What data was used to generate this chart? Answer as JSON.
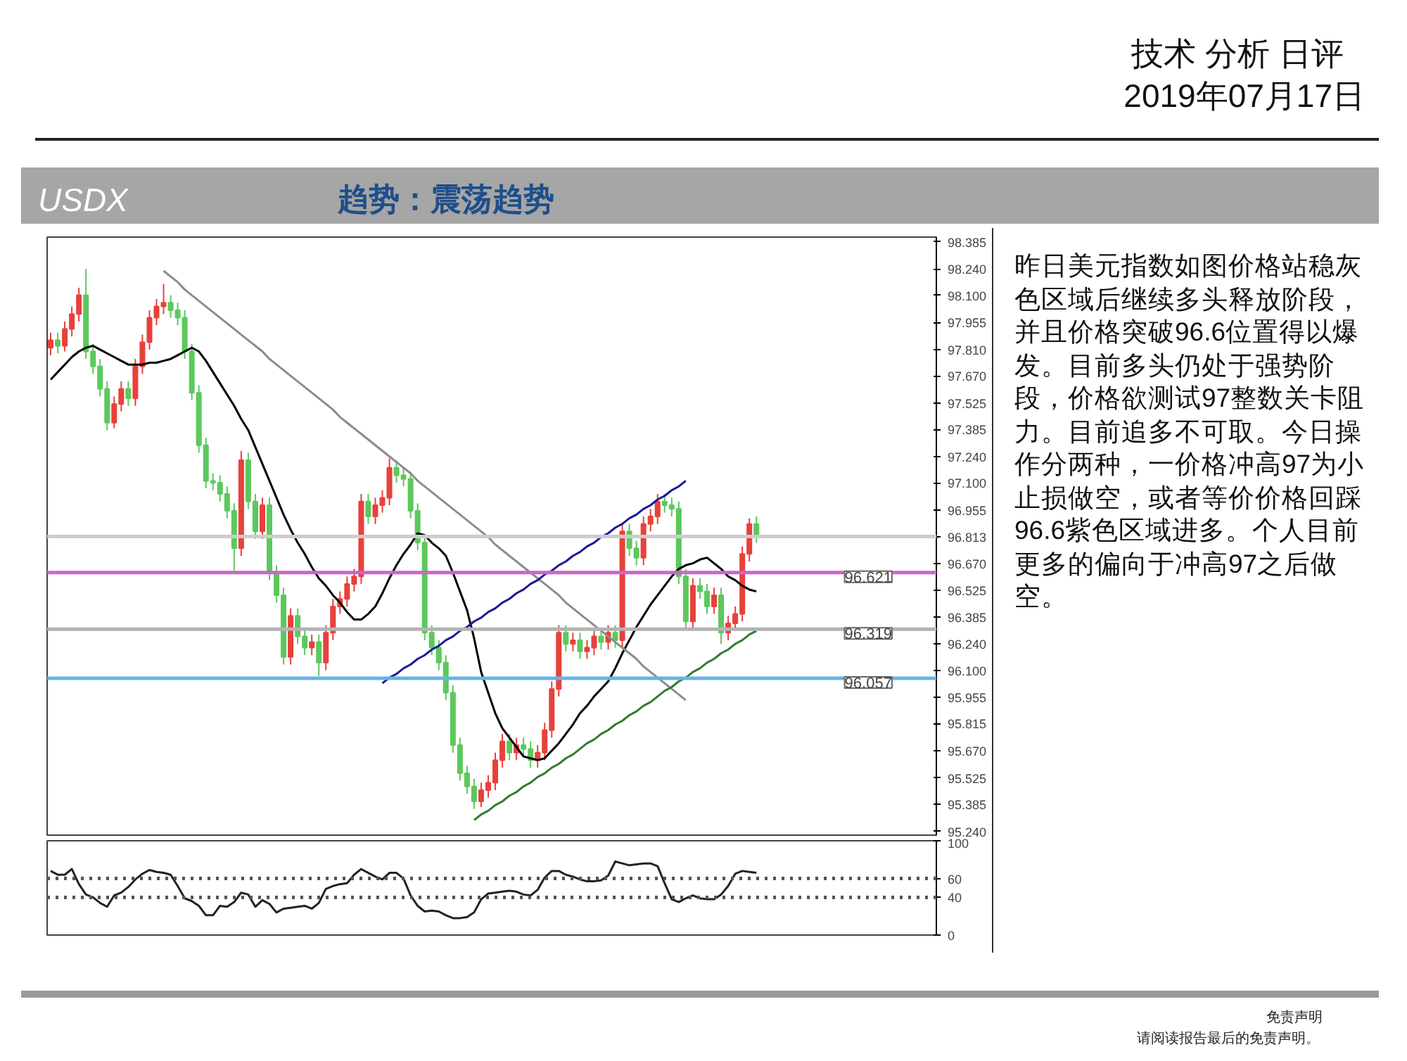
{
  "chart_data": [
    {
      "type": "candlestick",
      "title": "USDX",
      "subtitle": "趋势：震荡趋势",
      "annotations": [
        "技术 分析 日评",
        "2019年07月17日",
        "昨日美元指数如图价格站稳灰色区域后继续多头释放阶段，并且价格突破96.6位置得以爆发。目前多头仍处于强势阶段，价格欲测试97整数关卡阻力。目前追多不可取。今日操作分两种，一价格冲高97为小止损做空，或者等价价格回踩96.6紫色区域进多。个人目前更多的偏向于冲高97之后做空。",
        "免责声明",
        "请阅读报告最后的免责声明。"
      ],
      "categories": [
        null,
        null,
        null,
        null,
        null,
        null,
        null,
        null,
        null,
        null,
        null,
        null,
        null,
        null,
        null,
        null,
        null,
        null,
        null,
        null,
        null,
        null,
        null,
        null,
        null,
        null,
        null,
        null,
        null,
        null,
        null,
        null,
        null,
        null,
        null,
        null,
        null,
        null,
        null,
        null,
        null,
        null,
        null,
        null,
        null,
        null,
        null,
        null,
        null,
        null,
        null,
        null,
        null,
        null,
        null,
        null,
        null,
        null,
        null,
        null,
        null,
        null,
        null,
        null,
        null,
        null,
        null,
        null,
        null,
        null,
        null,
        null,
        null,
        null,
        null,
        null,
        null,
        null,
        null,
        null,
        null,
        null,
        null,
        null,
        null,
        null,
        null,
        null,
        null,
        null,
        null,
        null,
        null,
        null,
        null,
        null,
        null,
        null,
        null,
        null,
        null
      ],
      "ohlc": [
        [
          97.82,
          97.9,
          97.78,
          97.86
        ],
        [
          97.86,
          97.9,
          97.79,
          97.83
        ],
        [
          97.83,
          97.96,
          97.8,
          97.92
        ],
        [
          97.92,
          98.04,
          97.88,
          98.0
        ],
        [
          98.0,
          98.14,
          97.96,
          98.1
        ],
        [
          98.1,
          98.24,
          97.76,
          97.8
        ],
        [
          97.8,
          97.84,
          97.68,
          97.72
        ],
        [
          97.72,
          97.76,
          97.56,
          97.6
        ],
        [
          97.6,
          97.64,
          97.38,
          97.42
        ],
        [
          97.42,
          97.56,
          97.39,
          97.52
        ],
        [
          97.52,
          97.64,
          97.48,
          97.6
        ],
        [
          97.6,
          97.64,
          97.51,
          97.55
        ],
        [
          97.55,
          97.76,
          97.51,
          97.72
        ],
        [
          97.72,
          97.89,
          97.68,
          97.85
        ],
        [
          97.85,
          98.02,
          97.81,
          97.98
        ],
        [
          97.98,
          98.08,
          97.94,
          98.04
        ],
        [
          98.04,
          98.16,
          98.0,
          98.06
        ],
        [
          98.06,
          98.1,
          97.98,
          98.02
        ],
        [
          98.02,
          98.06,
          97.94,
          97.98
        ],
        [
          97.98,
          98.02,
          97.76,
          97.8
        ],
        [
          97.8,
          97.84,
          97.54,
          97.58
        ],
        [
          97.58,
          97.62,
          97.26,
          97.3
        ],
        [
          97.3,
          97.34,
          97.07,
          97.11
        ],
        [
          97.11,
          97.15,
          97.06,
          97.1
        ],
        [
          97.1,
          97.14,
          97.0,
          97.04
        ],
        [
          97.04,
          97.08,
          96.91,
          96.95
        ],
        [
          96.95,
          96.99,
          96.63,
          96.75
        ],
        [
          96.75,
          97.27,
          96.71,
          97.22
        ],
        [
          97.22,
          97.26,
          96.96,
          97.0
        ],
        [
          97.0,
          97.04,
          96.8,
          96.84
        ],
        [
          96.84,
          97.02,
          96.8,
          96.98
        ],
        [
          96.98,
          97.02,
          96.58,
          96.62
        ],
        [
          96.62,
          96.66,
          96.46,
          96.5
        ],
        [
          96.5,
          96.54,
          96.13,
          96.17
        ],
        [
          96.17,
          96.43,
          96.13,
          96.39
        ],
        [
          96.39,
          96.43,
          96.24,
          96.28
        ],
        [
          96.28,
          96.32,
          96.18,
          96.22
        ],
        [
          96.22,
          96.29,
          96.18,
          96.25
        ],
        [
          96.25,
          96.29,
          96.07,
          96.14
        ],
        [
          96.14,
          96.34,
          96.1,
          96.3
        ],
        [
          96.3,
          96.48,
          96.26,
          96.44
        ],
        [
          96.44,
          96.52,
          96.4,
          96.48
        ],
        [
          96.48,
          96.6,
          96.44,
          96.56
        ],
        [
          96.56,
          96.64,
          96.52,
          96.6
        ],
        [
          96.6,
          97.04,
          96.56,
          97.0
        ],
        [
          97.0,
          97.04,
          96.88,
          96.92
        ],
        [
          96.92,
          97.02,
          96.88,
          96.98
        ],
        [
          96.98,
          97.06,
          96.94,
          97.02
        ],
        [
          97.02,
          97.23,
          96.98,
          97.18
        ],
        [
          97.18,
          97.22,
          97.1,
          97.14
        ],
        [
          97.14,
          97.18,
          97.08,
          97.12
        ],
        [
          97.12,
          97.16,
          96.91,
          96.95
        ],
        [
          96.95,
          96.99,
          96.74,
          96.78
        ],
        [
          96.78,
          96.82,
          96.26,
          96.3
        ],
        [
          96.3,
          96.34,
          96.18,
          96.22
        ],
        [
          96.22,
          96.26,
          96.1,
          96.14
        ],
        [
          96.14,
          96.18,
          95.94,
          95.98
        ],
        [
          95.98,
          96.02,
          95.66,
          95.7
        ],
        [
          95.7,
          95.74,
          95.51,
          95.55
        ],
        [
          95.55,
          95.59,
          95.44,
          95.48
        ],
        [
          95.48,
          95.52,
          95.36,
          95.4
        ],
        [
          95.4,
          95.5,
          95.37,
          95.46
        ],
        [
          95.46,
          95.54,
          95.42,
          95.5
        ],
        [
          95.5,
          95.66,
          95.46,
          95.62
        ],
        [
          95.62,
          95.76,
          95.58,
          95.72
        ],
        [
          95.72,
          95.76,
          95.62,
          95.66
        ],
        [
          95.66,
          95.74,
          95.62,
          95.7
        ],
        [
          95.7,
          95.74,
          95.64,
          95.68
        ],
        [
          95.68,
          95.72,
          95.58,
          95.62
        ],
        [
          95.62,
          95.7,
          95.58,
          95.66
        ],
        [
          95.66,
          95.82,
          95.62,
          95.78
        ],
        [
          95.78,
          96.04,
          95.74,
          96.0
        ],
        [
          96.0,
          96.34,
          95.96,
          96.3
        ],
        [
          96.3,
          96.34,
          96.2,
          96.24
        ],
        [
          96.24,
          96.3,
          96.2,
          96.26
        ],
        [
          96.26,
          96.3,
          96.16,
          96.2
        ],
        [
          96.2,
          96.26,
          96.16,
          96.22
        ],
        [
          96.22,
          96.32,
          96.18,
          96.28
        ],
        [
          96.28,
          96.32,
          96.21,
          96.25
        ],
        [
          96.25,
          96.34,
          96.21,
          96.3
        ],
        [
          96.3,
          96.34,
          96.22,
          96.26
        ],
        [
          96.26,
          96.88,
          96.22,
          96.84
        ],
        [
          96.84,
          96.88,
          96.71,
          96.75
        ],
        [
          96.75,
          96.79,
          96.66,
          96.7
        ],
        [
          96.7,
          96.92,
          96.66,
          96.88
        ],
        [
          96.88,
          96.96,
          96.84,
          96.92
        ],
        [
          96.92,
          97.04,
          96.88,
          97.0
        ],
        [
          97.0,
          97.04,
          96.94,
          96.98
        ],
        [
          96.98,
          97.02,
          96.92,
          96.96
        ],
        [
          96.96,
          97.0,
          96.56,
          96.6
        ],
        [
          96.6,
          96.64,
          96.32,
          96.36
        ],
        [
          96.36,
          96.59,
          96.32,
          96.55
        ],
        [
          96.55,
          96.59,
          96.48,
          96.52
        ],
        [
          96.52,
          96.56,
          96.4,
          96.44
        ],
        [
          96.44,
          96.54,
          96.4,
          96.5
        ],
        [
          96.5,
          96.54,
          96.24,
          96.3
        ],
        [
          96.3,
          96.39,
          96.26,
          96.35
        ],
        [
          96.35,
          96.44,
          96.31,
          96.4
        ],
        [
          96.4,
          96.76,
          96.36,
          96.72
        ],
        [
          96.72,
          96.91,
          96.68,
          96.88
        ],
        [
          96.88,
          96.92,
          96.78,
          96.813
        ]
      ],
      "series": [
        {
          "type": "line",
          "color": "#000000",
          "values": [
            97.65,
            97.69,
            97.73,
            97.77,
            97.8,
            97.82,
            97.83,
            97.81,
            97.79,
            97.77,
            97.75,
            97.73,
            97.73,
            97.73,
            97.74,
            97.74,
            97.75,
            97.76,
            97.78,
            97.8,
            97.82,
            97.8,
            97.75,
            97.69,
            97.63,
            97.57,
            97.51,
            97.44,
            97.38,
            97.29,
            97.2,
            97.11,
            97.02,
            96.93,
            96.85,
            96.78,
            96.72,
            96.65,
            96.59,
            96.55,
            96.5,
            96.46,
            96.41,
            96.37,
            96.37,
            96.4,
            96.44,
            96.51,
            96.59,
            96.66,
            96.72,
            96.77,
            96.83,
            96.82,
            96.78,
            96.75,
            96.71,
            96.62,
            96.52,
            96.42,
            96.27,
            96.09,
            95.98,
            95.87,
            95.79,
            95.74,
            95.69,
            95.64,
            95.63,
            95.62,
            95.63,
            95.67,
            95.71,
            95.76,
            95.81,
            95.87,
            95.91,
            95.96,
            96.0,
            96.04,
            96.11,
            96.19,
            96.26,
            96.33,
            96.39,
            96.45,
            96.5,
            96.55,
            96.6,
            96.64,
            96.66,
            96.67,
            96.69,
            96.7,
            96.67,
            96.64,
            96.6,
            96.58,
            96.55,
            96.53,
            96.52
          ]
        },
        {
          "type": "line",
          "color": "#8c8c8c",
          "values": [
            null,
            null,
            null,
            null,
            null,
            null,
            null,
            null,
            null,
            null,
            null,
            null,
            null,
            null,
            null,
            null,
            98.23,
            98.2,
            98.17,
            98.13,
            98.1,
            98.07,
            98.04,
            98.01,
            97.98,
            97.95,
            97.92,
            97.89,
            97.86,
            97.83,
            97.8,
            97.76,
            97.73,
            97.7,
            97.67,
            97.64,
            97.61,
            97.58,
            97.55,
            97.52,
            97.49,
            97.45,
            97.42,
            97.39,
            97.36,
            97.33,
            97.3,
            97.27,
            97.24,
            97.21,
            97.18,
            97.15,
            97.11,
            97.08,
            97.05,
            97.02,
            96.99,
            96.96,
            96.93,
            96.9,
            96.87,
            96.84,
            96.81,
            96.77,
            96.74,
            96.71,
            96.68,
            96.65,
            96.62,
            96.59,
            96.56,
            96.53,
            96.5,
            96.46,
            96.43,
            96.4,
            96.37,
            96.34,
            96.31,
            96.28,
            96.25,
            96.22,
            96.19,
            96.16,
            96.12,
            96.09,
            96.06,
            96.03,
            96.0,
            95.97,
            95.94,
            null,
            null,
            null,
            null,
            null,
            null,
            null,
            null,
            null,
            null
          ]
        },
        {
          "type": "line",
          "color": "#1a1a99",
          "values": [
            null,
            null,
            null,
            null,
            null,
            null,
            null,
            null,
            null,
            null,
            null,
            null,
            null,
            null,
            null,
            null,
            null,
            null,
            null,
            null,
            null,
            null,
            null,
            null,
            null,
            null,
            null,
            null,
            null,
            null,
            null,
            null,
            null,
            null,
            null,
            null,
            null,
            null,
            null,
            null,
            null,
            null,
            null,
            null,
            null,
            null,
            null,
            96.03,
            96.06,
            96.08,
            96.11,
            96.13,
            96.16,
            96.18,
            96.21,
            96.23,
            96.26,
            96.28,
            96.31,
            96.33,
            96.36,
            96.38,
            96.41,
            96.43,
            96.46,
            96.48,
            96.51,
            96.53,
            96.56,
            96.58,
            96.61,
            96.63,
            96.66,
            96.68,
            96.71,
            96.73,
            96.76,
            96.78,
            96.81,
            96.83,
            96.86,
            96.88,
            96.91,
            96.93,
            96.96,
            96.98,
            97.01,
            97.03,
            97.06,
            97.08,
            97.11,
            null,
            null,
            null,
            null,
            null,
            null,
            null,
            null,
            null,
            null
          ]
        },
        {
          "type": "line",
          "color": "#2e7d32",
          "values": [
            null,
            null,
            null,
            null,
            null,
            null,
            null,
            null,
            null,
            null,
            null,
            null,
            null,
            null,
            null,
            null,
            null,
            null,
            null,
            null,
            null,
            null,
            null,
            null,
            null,
            null,
            null,
            null,
            null,
            null,
            null,
            null,
            null,
            null,
            null,
            null,
            null,
            null,
            null,
            null,
            null,
            null,
            null,
            null,
            null,
            null,
            null,
            null,
            null,
            null,
            null,
            null,
            null,
            null,
            null,
            null,
            null,
            null,
            null,
            null,
            95.3,
            95.33,
            95.35,
            95.38,
            95.4,
            95.43,
            95.45,
            95.48,
            95.5,
            95.53,
            95.55,
            95.58,
            95.6,
            95.63,
            95.65,
            95.68,
            95.71,
            95.73,
            95.76,
            95.78,
            95.81,
            95.83,
            95.86,
            95.88,
            95.91,
            95.93,
            95.96,
            95.99,
            96.01,
            96.04,
            96.06,
            96.09,
            96.11,
            96.14,
            96.16,
            96.19,
            96.21,
            96.24,
            96.26,
            96.29,
            96.31
          ]
        }
      ],
      "ref_lines": [
        {
          "axis": "y",
          "value": 96.813,
          "label": null,
          "color": "#cccccc"
        },
        {
          "axis": "y",
          "value": 96.621,
          "label": "96.621",
          "color": "#cc66cc"
        },
        {
          "axis": "y",
          "value": 96.319,
          "label": "96.319",
          "color": "#b3b3b3"
        },
        {
          "axis": "y",
          "value": 96.057,
          "label": "96.057",
          "color": "#66b3e6"
        }
      ],
      "ylim": [
        95.22,
        98.41
      ],
      "yticks": [
        98.385,
        {
          "value": 98.24,
          "label": "98.240"
        },
        {
          "value": 98.1,
          "label": "98.100"
        },
        97.955,
        {
          "value": 97.81,
          "label": "97.810"
        },
        {
          "value": 97.67,
          "label": "97.670"
        },
        97.525,
        97.385,
        {
          "value": 97.24,
          "label": "97.240"
        },
        {
          "value": 97.1,
          "label": "97.100"
        },
        96.955,
        96.813,
        {
          "value": 96.67,
          "label": "96.670"
        },
        96.525,
        96.385,
        {
          "value": 96.24,
          "label": "96.240"
        },
        {
          "value": 96.1,
          "label": "96.100"
        },
        95.955,
        95.815,
        {
          "value": 95.67,
          "label": "95.670"
        },
        95.525,
        95.385,
        {
          "value": 95.24,
          "label": "95.240"
        }
      ],
      "tick_labels": "y",
      "grid": false
    },
    {
      "type": "line",
      "color": "#222222",
      "categories": [
        null,
        null,
        null,
        null,
        null,
        null,
        null,
        null,
        null,
        null,
        null,
        null,
        null,
        null,
        null,
        null,
        null,
        null,
        null,
        null,
        null,
        null,
        null,
        null,
        null,
        null,
        null,
        null,
        null,
        null,
        null,
        null,
        null,
        null,
        null,
        null,
        null,
        null,
        null,
        null,
        null,
        null,
        null,
        null,
        null,
        null,
        null,
        null,
        null,
        null,
        null,
        null,
        null,
        null,
        null,
        null,
        null,
        null,
        null,
        null,
        null,
        null,
        null,
        null,
        null,
        null,
        null,
        null,
        null,
        null,
        null,
        null,
        null,
        null,
        null,
        null,
        null,
        null,
        null,
        null,
        null,
        null,
        null,
        null,
        null,
        null,
        null,
        null,
        null,
        null,
        null,
        null,
        null,
        null,
        null,
        null,
        null,
        null,
        null,
        null,
        null
      ],
      "values": [
        68,
        64,
        64,
        70,
        54,
        43,
        40,
        34,
        30,
        42,
        45,
        51,
        59,
        65,
        69,
        67,
        66,
        64,
        52,
        39,
        36,
        31,
        21,
        21,
        31,
        30,
        35,
        45,
        43,
        30,
        37,
        33,
        24,
        28,
        29,
        30,
        31,
        28,
        34,
        49,
        52,
        54,
        55,
        64,
        70,
        66,
        62,
        59,
        66,
        66,
        60,
        42,
        31,
        25,
        26,
        25,
        21,
        18,
        18,
        19,
        24,
        38,
        44,
        45,
        46,
        47,
        46,
        43,
        42,
        48,
        61,
        68,
        68,
        64,
        62,
        59,
        57,
        57,
        58,
        63,
        78,
        76,
        74,
        75,
        76,
        76,
        73,
        55,
        38,
        35,
        39,
        42,
        39,
        38,
        38,
        43,
        52,
        65,
        68,
        67,
        66
      ],
      "ref_lines": [
        {
          "axis": "y",
          "value": 60,
          "label": null,
          "color": "#555555",
          "line_style": "dotted"
        },
        {
          "axis": "y",
          "value": 40,
          "label": null,
          "color": "#555555",
          "line_style": "dotted"
        }
      ],
      "ylim": [
        0,
        100
      ],
      "yticks": [
        0,
        40,
        60,
        100
      ],
      "tick_labels": "y",
      "grid": false
    }
  ]
}
